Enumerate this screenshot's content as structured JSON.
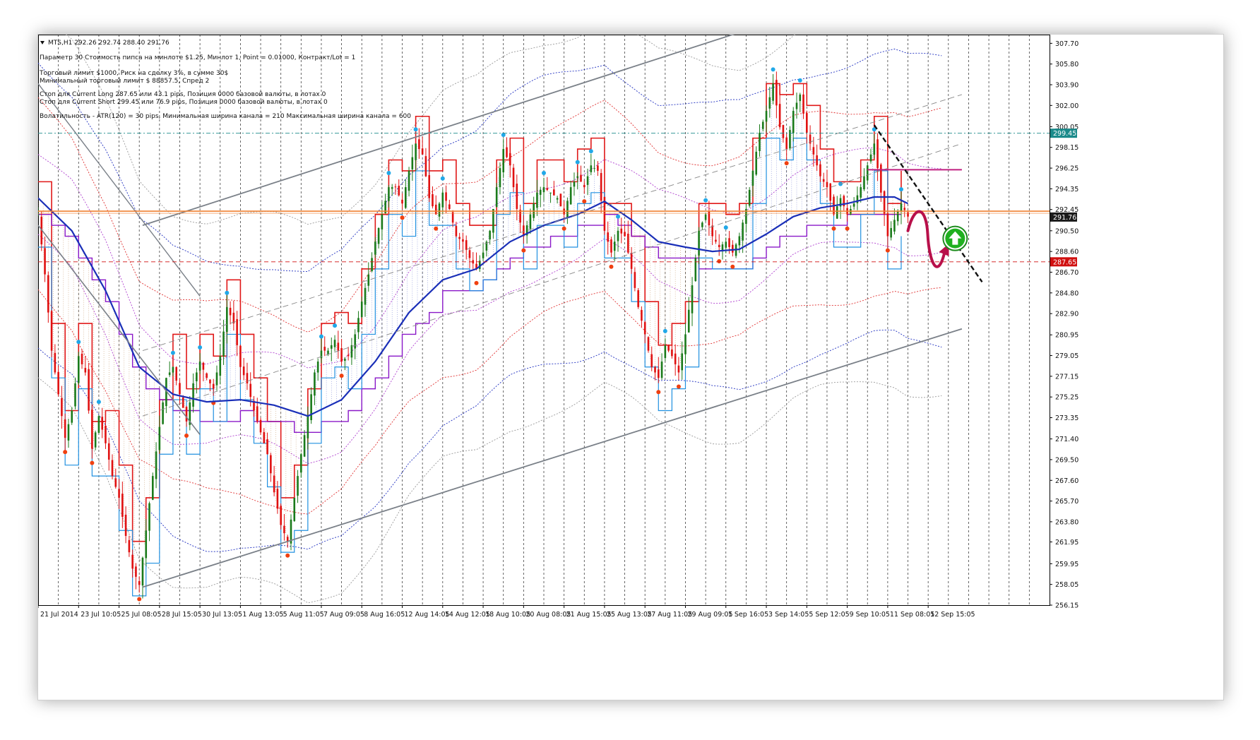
{
  "header": {
    "symbol_line": "MTS,H1  292.26 292.74 288.40 291.76",
    "info_lines": [
      "Параметр 30   Стоимость пипса на минлоте $1.25,   Минлот 1,   Point = 0.01000,   Контракт/Lot = 1",
      "Торговый лимит $1000, Риск на сделку 3%, в сумме 30$",
      "Минимальный торговый лимит $ 88857.5,   Спред  2",
      "Стоп для Current Long 287.65  или  43.1 pips,   Позиция 0000 базовой валюты,  в лотах 0",
      "Стоп для Current Short 299.45  или  76.9 pips,   Позиция 0000 базовой валюты,  в лотах 0",
      "Волатильность - ATR(120) = 30 pips,  Минимальная ширина канала = 210   Максимальная ширина канала = 600"
    ]
  },
  "colors": {
    "candle_up": "#1a7a1a",
    "candle_down": "#e01010",
    "ma_blue": "#1a2fb8",
    "channel_gray": "#7a8088",
    "resistance_orange": "#f08030",
    "stop_long_red": "#d01010",
    "stop_short_teal": "#1a8a8a",
    "price_tag": "#1a1a1a",
    "purple_line": "#8a18c8",
    "forecast_curve": "#b8104a",
    "arrow_green": "#20b020"
  },
  "chart_data": {
    "type": "candlestick",
    "symbol": "MTS",
    "timeframe": "H1",
    "ohlc_last": {
      "open": 292.26,
      "high": 292.74,
      "low": 288.4,
      "close": 291.76
    },
    "ylim": [
      256.15,
      308.5
    ],
    "y_ticks": [
      "307.70",
      "305.80",
      "303.90",
      "302.00",
      "300.05",
      "298.15",
      "296.25",
      "294.35",
      "292.45",
      "290.50",
      "288.60",
      "286.70",
      "284.80",
      "282.90",
      "280.95",
      "279.05",
      "277.15",
      "275.25",
      "273.35",
      "271.40",
      "269.50",
      "267.60",
      "265.70",
      "263.80",
      "261.95",
      "259.95",
      "258.05",
      "256.15"
    ],
    "x_ticks": [
      "21 Jul 2014",
      "23 Jul 10:05",
      "25 Jul 08:05",
      "28 Jul 15:05",
      "30 Jul 13:05",
      "1 Aug 13:05",
      "5 Aug 11:05",
      "7 Aug 09:05",
      "8 Aug 16:05",
      "12 Aug 14:05",
      "14 Aug 12:05",
      "18 Aug 10:05",
      "20 Aug 08:05",
      "21 Aug 15:05",
      "25 Aug 13:05",
      "27 Aug 11:05",
      "29 Aug 09:05",
      "1 Sep 16:05",
      "3 Sep 14:05",
      "5 Sep 12:05",
      "9 Sep 10:05",
      "11 Sep 08:05",
      "12 Sep 15:05"
    ],
    "price_labels": [
      {
        "value": 299.45,
        "text": "299.45",
        "kind": "stop-short"
      },
      {
        "value": 291.76,
        "text": "291.76",
        "kind": "current"
      },
      {
        "value": 287.65,
        "text": "287.65",
        "kind": "stop-long"
      }
    ],
    "close_path": [
      [
        0,
        292.0
      ],
      [
        2,
        286.5
      ],
      [
        4,
        279.5
      ],
      [
        6,
        275.5
      ],
      [
        8,
        271.5
      ],
      [
        10,
        274.0
      ],
      [
        12,
        279.0
      ],
      [
        14,
        277.5
      ],
      [
        16,
        270.5
      ],
      [
        18,
        273.5
      ],
      [
        20,
        271.0
      ],
      [
        22,
        268.0
      ],
      [
        24,
        266.0
      ],
      [
        26,
        262.5
      ],
      [
        28,
        259.5
      ],
      [
        30,
        258.0
      ],
      [
        32,
        263.0
      ],
      [
        34,
        268.0
      ],
      [
        36,
        272.5
      ],
      [
        38,
        277.0
      ],
      [
        40,
        278.0
      ],
      [
        42,
        275.5
      ],
      [
        44,
        273.0
      ],
      [
        46,
        276.5
      ],
      [
        48,
        278.5
      ],
      [
        50,
        277.0
      ],
      [
        52,
        276.0
      ],
      [
        54,
        279.0
      ],
      [
        56,
        283.5
      ],
      [
        58,
        282.0
      ],
      [
        60,
        278.0
      ],
      [
        62,
        276.5
      ],
      [
        64,
        274.0
      ],
      [
        66,
        272.0
      ],
      [
        68,
        270.0
      ],
      [
        70,
        266.5
      ],
      [
        72,
        263.5
      ],
      [
        74,
        262.0
      ],
      [
        76,
        266.0
      ],
      [
        78,
        270.0
      ],
      [
        80,
        273.5
      ],
      [
        82,
        277.5
      ],
      [
        84,
        279.5
      ],
      [
        86,
        279.5
      ],
      [
        88,
        280.5
      ],
      [
        90,
        278.5
      ],
      [
        92,
        279.0
      ],
      [
        94,
        281.0
      ],
      [
        96,
        284.0
      ],
      [
        98,
        286.5
      ],
      [
        100,
        289.5
      ],
      [
        102,
        292.0
      ],
      [
        104,
        294.5
      ],
      [
        106,
        294.5
      ],
      [
        108,
        293.0
      ],
      [
        110,
        296.0
      ],
      [
        112,
        298.5
      ],
      [
        114,
        297.5
      ],
      [
        116,
        293.5
      ],
      [
        118,
        292.0
      ],
      [
        120,
        294.0
      ],
      [
        122,
        292.5
      ],
      [
        124,
        290.0
      ],
      [
        126,
        289.5
      ],
      [
        128,
        288.0
      ],
      [
        130,
        287.0
      ],
      [
        132,
        288.5
      ],
      [
        134,
        290.5
      ],
      [
        136,
        294.5
      ],
      [
        138,
        298.0
      ],
      [
        140,
        296.5
      ],
      [
        142,
        292.5
      ],
      [
        144,
        290.0
      ],
      [
        146,
        292.0
      ],
      [
        148,
        294.0
      ],
      [
        150,
        294.5
      ],
      [
        152,
        294.0
      ],
      [
        154,
        293.5
      ],
      [
        156,
        292.0
      ],
      [
        158,
        294.5
      ],
      [
        160,
        295.5
      ],
      [
        162,
        294.5
      ],
      [
        164,
        296.5
      ],
      [
        166,
        296.0
      ],
      [
        168,
        290.5
      ],
      [
        170,
        288.5
      ],
      [
        172,
        290.5
      ],
      [
        174,
        290.0
      ],
      [
        176,
        287.0
      ],
      [
        178,
        283.5
      ],
      [
        180,
        281.0
      ],
      [
        182,
        278.0
      ],
      [
        184,
        277.0
      ],
      [
        186,
        280.0
      ],
      [
        188,
        279.0
      ],
      [
        190,
        277.5
      ],
      [
        192,
        281.0
      ],
      [
        194,
        285.5
      ],
      [
        196,
        290.5
      ],
      [
        198,
        292.0
      ],
      [
        200,
        290.0
      ],
      [
        202,
        289.0
      ],
      [
        204,
        289.5
      ],
      [
        206,
        288.5
      ],
      [
        208,
        290.0
      ],
      [
        210,
        292.5
      ],
      [
        212,
        296.0
      ],
      [
        214,
        299.5
      ],
      [
        216,
        301.5
      ],
      [
        218,
        304.0
      ],
      [
        220,
        300.0
      ],
      [
        222,
        298.0
      ],
      [
        224,
        301.5
      ],
      [
        226,
        303.0
      ],
      [
        228,
        299.5
      ],
      [
        230,
        297.5
      ],
      [
        232,
        295.5
      ],
      [
        234,
        294.5
      ],
      [
        236,
        292.0
      ],
      [
        238,
        293.5
      ],
      [
        240,
        292.0
      ],
      [
        242,
        293.0
      ],
      [
        244,
        294.5
      ],
      [
        246,
        296.5
      ],
      [
        248,
        298.5
      ],
      [
        250,
        294.0
      ],
      [
        252,
        290.0
      ],
      [
        254,
        291.5
      ],
      [
        256,
        293.0
      ],
      [
        258,
        291.8
      ]
    ],
    "blue_ma": [
      [
        0,
        293.5
      ],
      [
        10,
        290.5
      ],
      [
        20,
        285.0
      ],
      [
        30,
        278.0
      ],
      [
        40,
        275.5
      ],
      [
        50,
        274.8
      ],
      [
        60,
        275.0
      ],
      [
        70,
        274.5
      ],
      [
        80,
        273.5
      ],
      [
        90,
        275.0
      ],
      [
        100,
        278.5
      ],
      [
        110,
        283.0
      ],
      [
        120,
        286.0
      ],
      [
        130,
        287.0
      ],
      [
        140,
        289.5
      ],
      [
        150,
        291.0
      ],
      [
        160,
        292.0
      ],
      [
        168,
        293.2
      ],
      [
        176,
        291.5
      ],
      [
        184,
        289.5
      ],
      [
        192,
        289.0
      ],
      [
        200,
        288.6
      ],
      [
        208,
        288.8
      ],
      [
        216,
        290.2
      ],
      [
        224,
        291.8
      ],
      [
        232,
        292.6
      ],
      [
        240,
        293.0
      ],
      [
        248,
        293.6
      ],
      [
        254,
        293.6
      ],
      [
        258,
        293.0
      ]
    ],
    "channel_upper": [
      [
        31,
        291.0
      ],
      [
        213,
        309.2
      ]
    ],
    "channel_lower": [
      [
        31,
        257.8
      ],
      [
        274,
        281.5
      ]
    ],
    "lower_descending_channel": [
      [
        0,
        291.0
      ],
      [
        48,
        271.8
      ]
    ],
    "resistance_level": 292.3,
    "forecast": {
      "direction": "up",
      "target": 289.8
    }
  }
}
